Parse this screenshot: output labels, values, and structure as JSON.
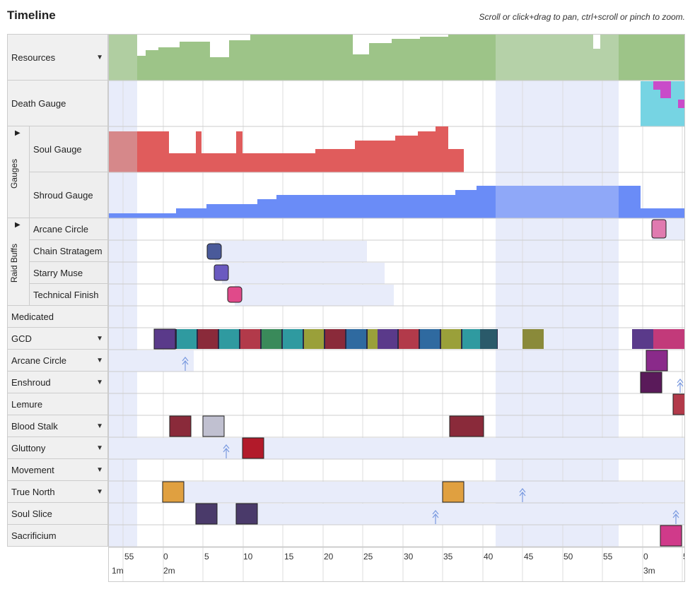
{
  "header": {
    "title": "Timeline",
    "hint": "Scroll or click+drag to pan, ctrl+scroll or pinch to zoom."
  },
  "rows": {
    "resources": "Resources",
    "death_gauge": "Death Gauge",
    "gauges_group": "Gauges",
    "soul_gauge": "Soul Gauge",
    "shroud_gauge": "Shroud Gauge",
    "raid_buffs_group": "Raid Buffs",
    "arcane_circle_buff": "Arcane Circle",
    "chain_stratagem": "Chain Stratagem",
    "starry_muse": "Starry Muse",
    "technical_finish": "Technical Finish",
    "medicated": "Medicated",
    "gcd": "GCD",
    "arcane_circle": "Arcane Circle",
    "enshroud": "Enshroud",
    "lemure": "Lemure",
    "blood_stalk": "Blood Stalk",
    "gluttony": "Gluttony",
    "movement": "Movement",
    "true_north": "True North",
    "soul_slice": "Soul Slice",
    "sacrificium": "Sacrificium"
  },
  "axis": {
    "ticks": [
      "55",
      "0",
      "5",
      "10",
      "15",
      "20",
      "25",
      "30",
      "35",
      "40",
      "45",
      "50",
      "55",
      "0",
      "5"
    ],
    "minute_labels": [
      "1m",
      "2m",
      "3m"
    ]
  },
  "colors": {
    "resources": "#9dc488",
    "soul": "#e05c5c",
    "shroud": "#6a8cf7",
    "death_cyan": "#76d4e3",
    "death_magenta": "#c94bc9",
    "highlight": "#e8ecfa"
  }
}
